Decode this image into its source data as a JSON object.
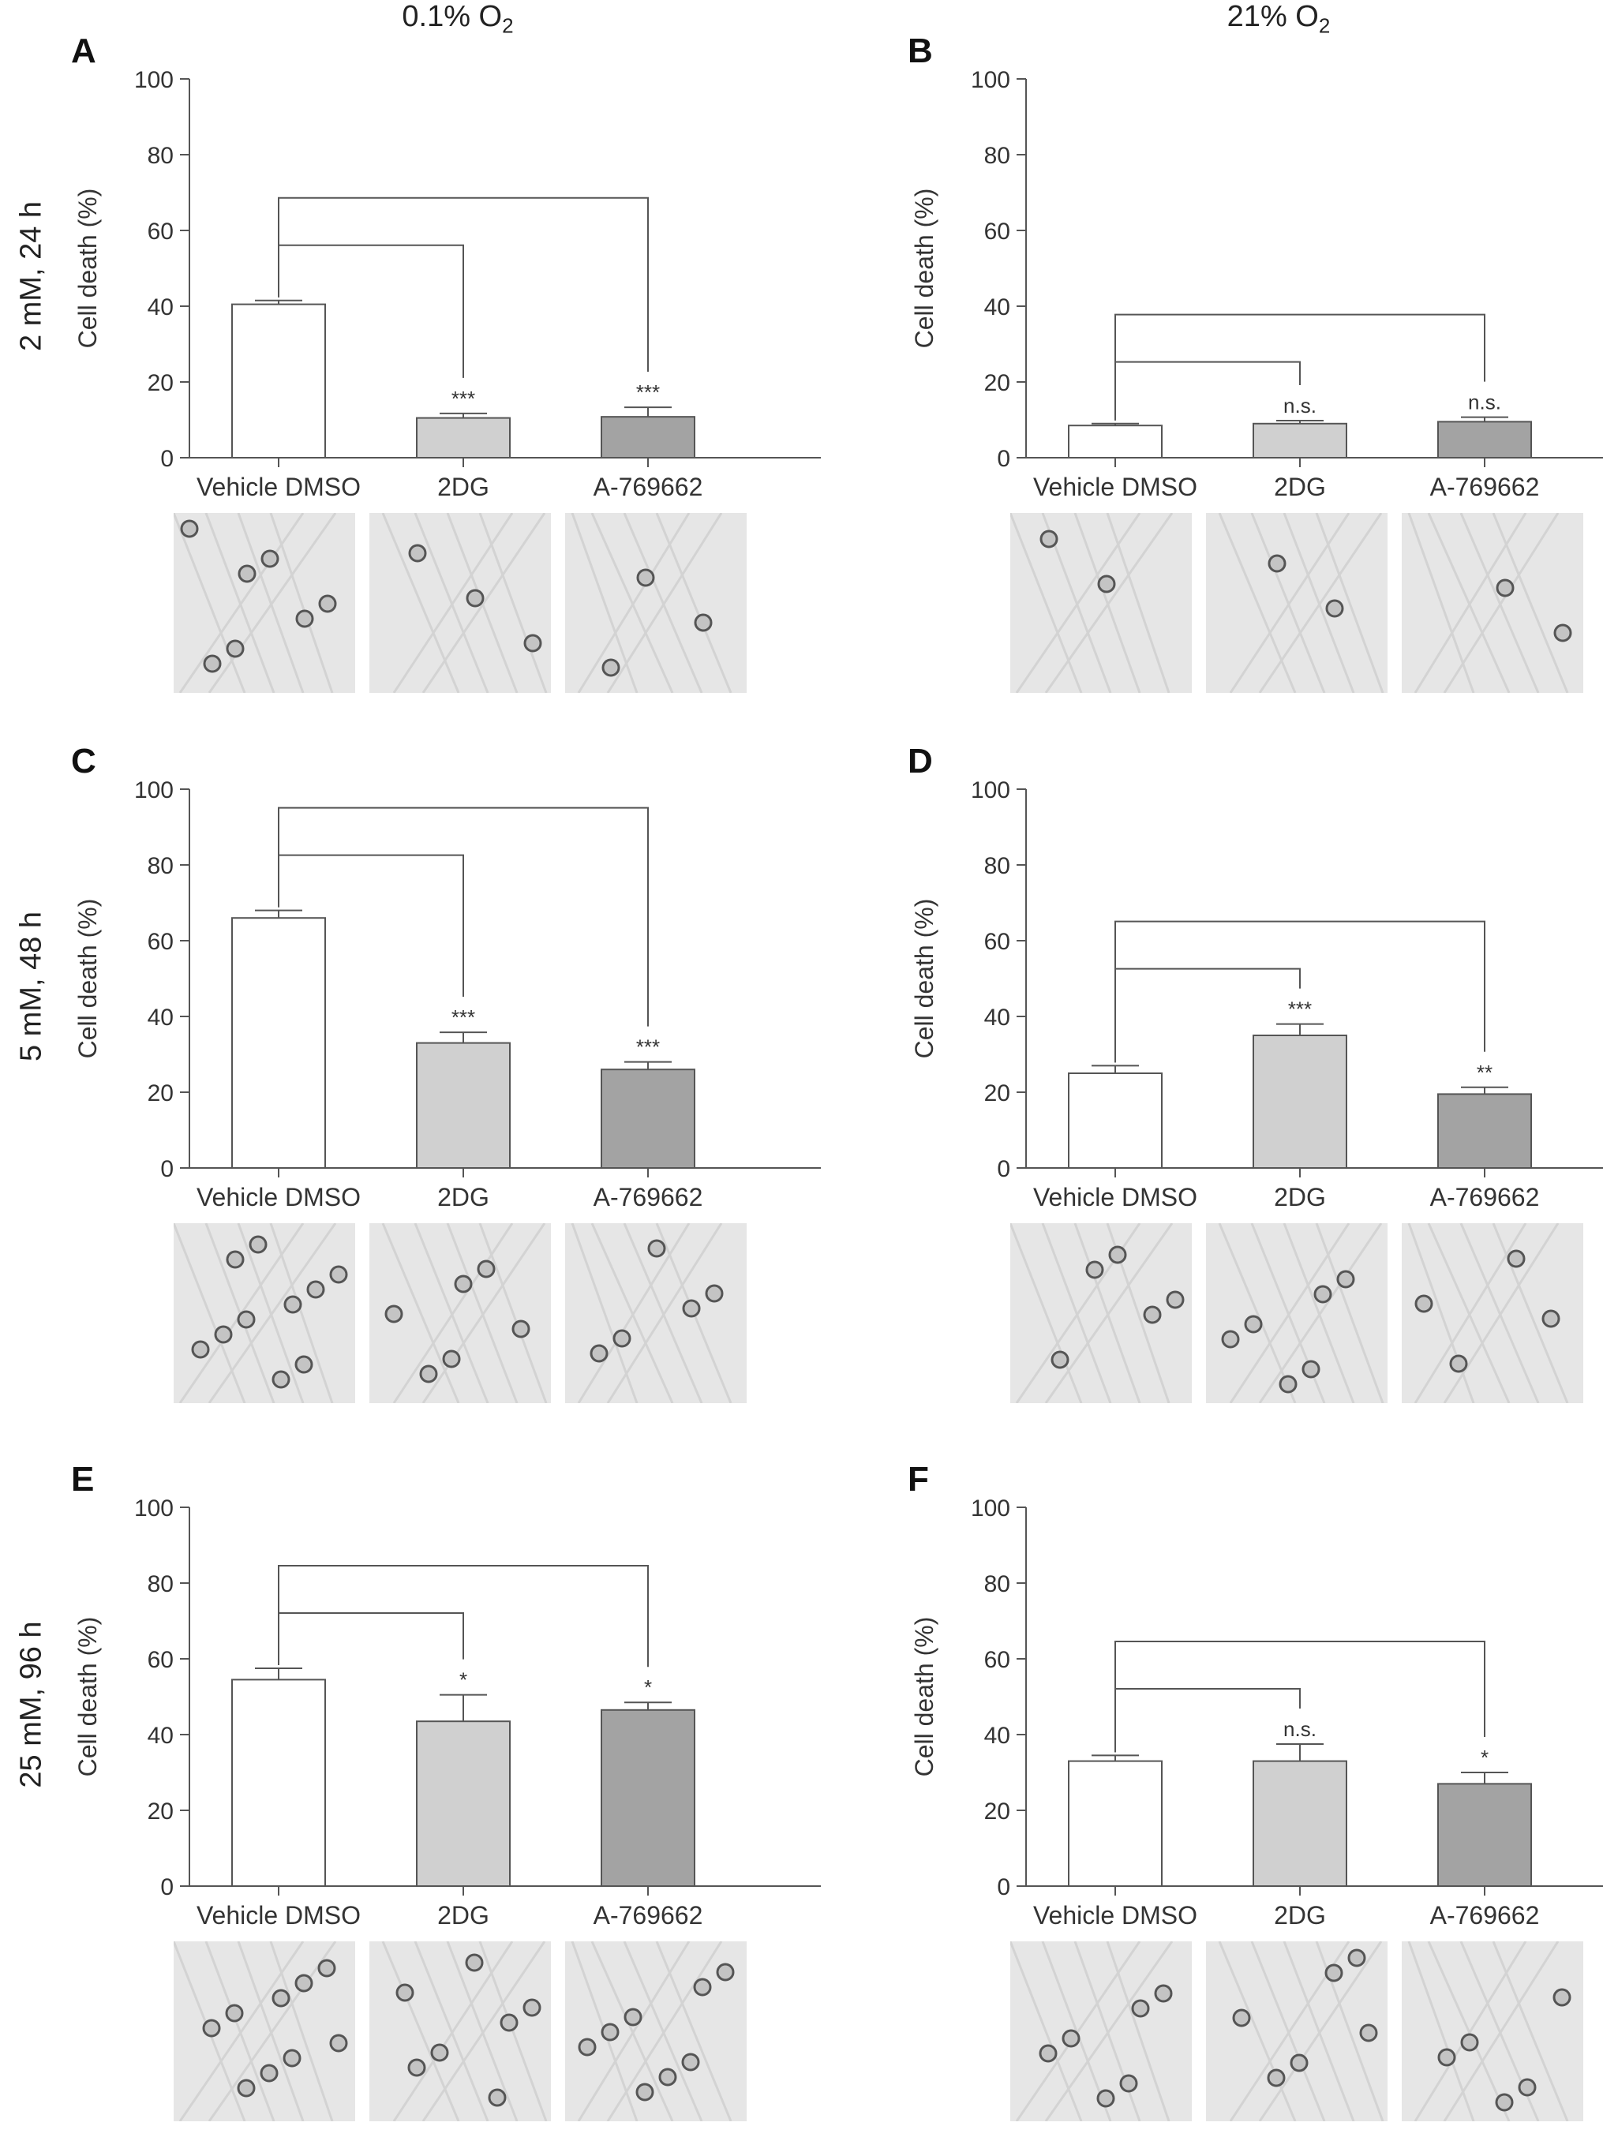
{
  "column_headers": [
    "0.1%  O",
    "21%  O"
  ],
  "column_header_subscript": "2",
  "row_labels": [
    "2 mM, 24 h",
    "5 mM, 48 h",
    "25 mM, 96 h"
  ],
  "colors": {
    "vehicle_fill": "#ffffff",
    "2dg_fill": "#d0d0d0",
    "a769662_fill": "#a3a3a3",
    "stroke": "#555555",
    "text": "#333333"
  },
  "chart_data": [
    {
      "panel": "A",
      "type": "bar",
      "categories": [
        "Vehicle DMSO",
        "2DG",
        "A-769662"
      ],
      "values": [
        40.5,
        10.5,
        10.8
      ],
      "errors": [
        1.0,
        1.2,
        2.5
      ],
      "significance": [
        "",
        "***",
        "***"
      ],
      "ylabel": "Cell death (%)",
      "ylim": [
        0,
        100
      ],
      "yticks": [
        0,
        20,
        40,
        60,
        80,
        100
      ],
      "micrograph_icon": "micrograph-image"
    },
    {
      "panel": "B",
      "type": "bar",
      "categories": [
        "Vehicle DMSO",
        "2DG",
        "A-769662"
      ],
      "values": [
        8.5,
        9.0,
        9.5
      ],
      "errors": [
        0.5,
        0.8,
        1.2
      ],
      "significance": [
        "",
        "n.s.",
        "n.s."
      ],
      "ylabel": "Cell death (%)",
      "ylim": [
        0,
        100
      ],
      "yticks": [
        0,
        20,
        40,
        60,
        80,
        100
      ],
      "micrograph_icon": "micrograph-image"
    },
    {
      "panel": "C",
      "type": "bar",
      "categories": [
        "Vehicle DMSO",
        "2DG",
        "A-769662"
      ],
      "values": [
        66.0,
        33.0,
        26.0
      ],
      "errors": [
        2.0,
        2.8,
        2.0
      ],
      "significance": [
        "",
        "***",
        "***"
      ],
      "ylabel": "Cell death (%)",
      "ylim": [
        0,
        100
      ],
      "yticks": [
        0,
        20,
        40,
        60,
        80,
        100
      ],
      "micrograph_icon": "micrograph-image"
    },
    {
      "panel": "D",
      "type": "bar",
      "categories": [
        "Vehicle DMSO",
        "2DG",
        "A-769662"
      ],
      "values": [
        25.0,
        35.0,
        19.5
      ],
      "errors": [
        2.0,
        3.0,
        1.8
      ],
      "significance": [
        "",
        "***",
        "**"
      ],
      "ylabel": "Cell death (%)",
      "ylim": [
        0,
        100
      ],
      "yticks": [
        0,
        20,
        40,
        60,
        80,
        100
      ],
      "micrograph_icon": "micrograph-image"
    },
    {
      "panel": "E",
      "type": "bar",
      "categories": [
        "Vehicle DMSO",
        "2DG",
        "A-769662"
      ],
      "values": [
        54.5,
        43.5,
        46.5
      ],
      "errors": [
        3.0,
        7.0,
        2.0
      ],
      "significance": [
        "",
        "*",
        "*"
      ],
      "ylabel": "Cell death (%)",
      "ylim": [
        0,
        100
      ],
      "yticks": [
        0,
        20,
        40,
        60,
        80,
        100
      ],
      "micrograph_icon": "micrograph-image"
    },
    {
      "panel": "F",
      "type": "bar",
      "categories": [
        "Vehicle DMSO",
        "2DG",
        "A-769662"
      ],
      "values": [
        33.0,
        33.0,
        27.0
      ],
      "errors": [
        1.5,
        4.5,
        3.0
      ],
      "significance": [
        "",
        "n.s.",
        "*"
      ],
      "ylabel": "Cell death (%)",
      "ylim": [
        0,
        100
      ],
      "yticks": [
        0,
        20,
        40,
        60,
        80,
        100
      ],
      "micrograph_icon": "micrograph-image"
    }
  ]
}
